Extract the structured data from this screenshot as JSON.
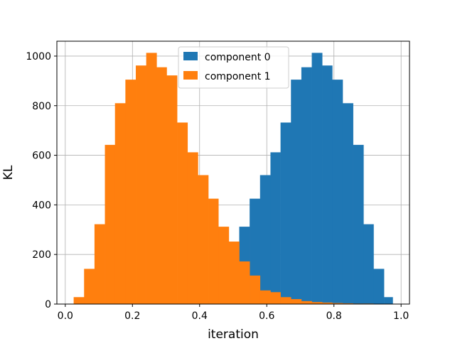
{
  "chart_data": {
    "type": "bar",
    "subtype": "histogram-overlay",
    "xlabel": "iteration",
    "ylabel": "KL",
    "xlim": [
      -0.025,
      1.025
    ],
    "ylim": [
      0,
      1060
    ],
    "xticks": [
      0.0,
      0.2,
      0.4,
      0.6,
      0.8,
      1.0
    ],
    "xtick_labels": [
      "0.0",
      "0.2",
      "0.4",
      "0.6",
      "0.8",
      "1.0"
    ],
    "yticks": [
      0,
      200,
      400,
      600,
      800,
      1000
    ],
    "ytick_labels": [
      "0",
      "200",
      "400",
      "600",
      "800",
      "1000"
    ],
    "grid": true,
    "legend_position": "top-center",
    "series": [
      {
        "name": "component 0",
        "color": "#1f77b4",
        "bins": [
          {
            "x0": 0.025,
            "x1": 0.056,
            "count": 1
          },
          {
            "x0": 0.056,
            "x1": 0.087,
            "count": 2
          },
          {
            "x0": 0.087,
            "x1": 0.118,
            "count": 2
          },
          {
            "x0": 0.118,
            "x1": 0.148,
            "count": 3
          },
          {
            "x0": 0.148,
            "x1": 0.179,
            "count": 3
          },
          {
            "x0": 0.179,
            "x1": 0.21,
            "count": 3
          },
          {
            "x0": 0.21,
            "x1": 0.241,
            "count": 4
          },
          {
            "x0": 0.241,
            "x1": 0.272,
            "count": 5
          },
          {
            "x0": 0.272,
            "x1": 0.302,
            "count": 5
          },
          {
            "x0": 0.302,
            "x1": 0.333,
            "count": 6
          },
          {
            "x0": 0.333,
            "x1": 0.364,
            "count": 7
          },
          {
            "x0": 0.364,
            "x1": 0.395,
            "count": 8
          },
          {
            "x0": 0.395,
            "x1": 0.426,
            "count": 10
          },
          {
            "x0": 0.426,
            "x1": 0.456,
            "count": 12
          },
          {
            "x0": 0.456,
            "x1": 0.487,
            "count": 15
          },
          {
            "x0": 0.487,
            "x1": 0.518,
            "count": 20
          },
          {
            "x0": 0.518,
            "x1": 0.549,
            "count": 312
          },
          {
            "x0": 0.549,
            "x1": 0.58,
            "count": 425
          },
          {
            "x0": 0.58,
            "x1": 0.611,
            "count": 520
          },
          {
            "x0": 0.611,
            "x1": 0.641,
            "count": 612
          },
          {
            "x0": 0.641,
            "x1": 0.672,
            "count": 732
          },
          {
            "x0": 0.672,
            "x1": 0.703,
            "count": 905
          },
          {
            "x0": 0.703,
            "x1": 0.734,
            "count": 955
          },
          {
            "x0": 0.734,
            "x1": 0.765,
            "count": 1013
          },
          {
            "x0": 0.765,
            "x1": 0.795,
            "count": 962
          },
          {
            "x0": 0.795,
            "x1": 0.826,
            "count": 905
          },
          {
            "x0": 0.826,
            "x1": 0.857,
            "count": 810
          },
          {
            "x0": 0.857,
            "x1": 0.888,
            "count": 642
          },
          {
            "x0": 0.888,
            "x1": 0.918,
            "count": 322
          },
          {
            "x0": 0.918,
            "x1": 0.949,
            "count": 142
          },
          {
            "x0": 0.949,
            "x1": 0.975,
            "count": 28
          }
        ]
      },
      {
        "name": "component 1",
        "color": "#ff7f0e",
        "bins": [
          {
            "x0": 0.025,
            "x1": 0.056,
            "count": 28
          },
          {
            "x0": 0.056,
            "x1": 0.087,
            "count": 142
          },
          {
            "x0": 0.087,
            "x1": 0.118,
            "count": 322
          },
          {
            "x0": 0.118,
            "x1": 0.148,
            "count": 642
          },
          {
            "x0": 0.148,
            "x1": 0.179,
            "count": 810
          },
          {
            "x0": 0.179,
            "x1": 0.21,
            "count": 905
          },
          {
            "x0": 0.21,
            "x1": 0.241,
            "count": 962
          },
          {
            "x0": 0.241,
            "x1": 0.272,
            "count": 1013
          },
          {
            "x0": 0.272,
            "x1": 0.302,
            "count": 955
          },
          {
            "x0": 0.302,
            "x1": 0.333,
            "count": 922
          },
          {
            "x0": 0.333,
            "x1": 0.364,
            "count": 732
          },
          {
            "x0": 0.364,
            "x1": 0.395,
            "count": 612
          },
          {
            "x0": 0.395,
            "x1": 0.426,
            "count": 520
          },
          {
            "x0": 0.426,
            "x1": 0.456,
            "count": 425
          },
          {
            "x0": 0.456,
            "x1": 0.487,
            "count": 312
          },
          {
            "x0": 0.487,
            "x1": 0.518,
            "count": 252
          },
          {
            "x0": 0.518,
            "x1": 0.549,
            "count": 172
          },
          {
            "x0": 0.549,
            "x1": 0.58,
            "count": 115
          },
          {
            "x0": 0.58,
            "x1": 0.611,
            "count": 55
          },
          {
            "x0": 0.611,
            "x1": 0.641,
            "count": 48
          },
          {
            "x0": 0.641,
            "x1": 0.672,
            "count": 28
          },
          {
            "x0": 0.672,
            "x1": 0.703,
            "count": 20
          },
          {
            "x0": 0.703,
            "x1": 0.734,
            "count": 12
          },
          {
            "x0": 0.734,
            "x1": 0.765,
            "count": 8
          },
          {
            "x0": 0.765,
            "x1": 0.795,
            "count": 6
          },
          {
            "x0": 0.795,
            "x1": 0.826,
            "count": 4
          },
          {
            "x0": 0.826,
            "x1": 0.857,
            "count": 3
          },
          {
            "x0": 0.857,
            "x1": 0.888,
            "count": 2
          },
          {
            "x0": 0.888,
            "x1": 0.918,
            "count": 2
          },
          {
            "x0": 0.918,
            "x1": 0.949,
            "count": 1
          },
          {
            "x0": 0.949,
            "x1": 0.975,
            "count": 1
          }
        ]
      }
    ]
  }
}
